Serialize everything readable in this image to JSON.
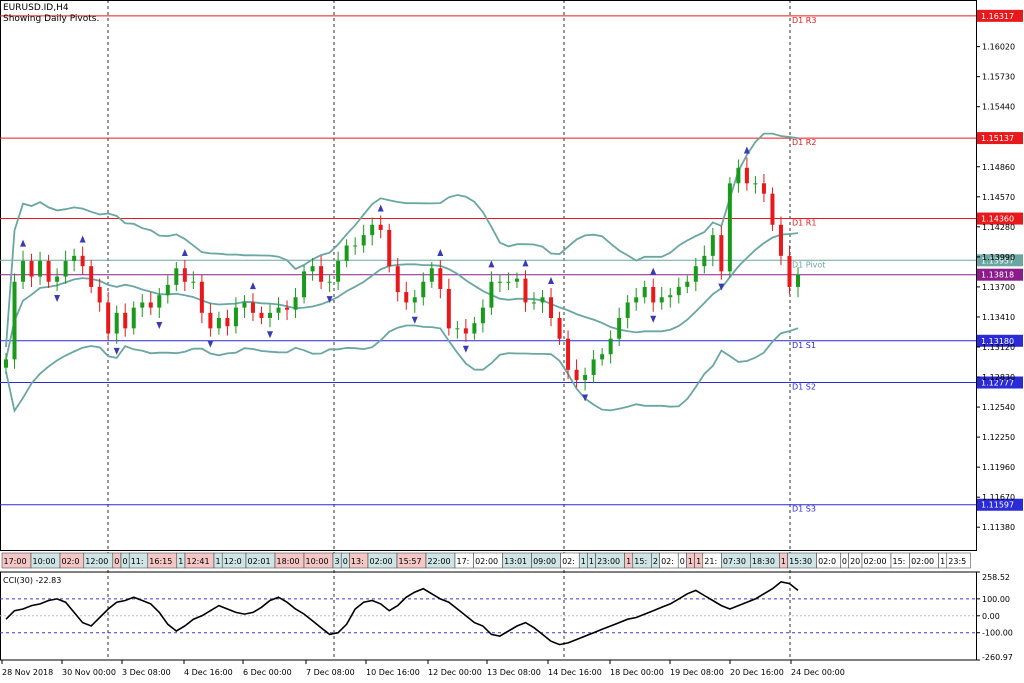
{
  "header": {
    "symbol": "EURUSD.ID,H4",
    "subtitle": "Showing Daily Pivots."
  },
  "chart_data": {
    "type": "candlestick",
    "price_axis_ticks": [
      "1.16020",
      "1.15730",
      "1.15440",
      "1.14860",
      "1.14570",
      "1.14280",
      "1.13990",
      "1.13700",
      "1.13410",
      "1.13120",
      "1.12830",
      "1.12540",
      "1.12250",
      "1.11960",
      "1.11670",
      "1.11380"
    ],
    "ylim": [
      1.1116,
      1.1647
    ],
    "pivots": [
      {
        "name": "D1 R3",
        "value": 1.16317,
        "label": "1.16317",
        "color": "#e8181b"
      },
      {
        "name": "D1 R2",
        "value": 1.15137,
        "label": "1.15137",
        "color": "#e8181b"
      },
      {
        "name": "D1 R1",
        "value": 1.1436,
        "label": "1.14360",
        "color": "#e8181b"
      },
      {
        "name": "D1 Pivot",
        "value": 1.13957,
        "label": "1.13957",
        "color": "#6aa6a2"
      },
      {
        "name": "D1 S1",
        "value": 1.1318,
        "label": "1.13180",
        "color": "#2a2ad6"
      },
      {
        "name": "D1 S2",
        "value": 1.12777,
        "label": "1.12777",
        "color": "#2a2ad6"
      },
      {
        "name": "D1 S3",
        "value": 1.11597,
        "label": "1.11597",
        "color": "#2a2ad6"
      }
    ],
    "current_price": {
      "value": 1.13818,
      "label": "1.13818",
      "color": "#8b1b8b"
    },
    "closes": [
      1.13,
      1.1375,
      1.1395,
      1.138,
      1.1395,
      1.1375,
      1.138,
      1.1395,
      1.14,
      1.139,
      1.137,
      1.1355,
      1.1325,
      1.1345,
      1.133,
      1.135,
      1.1355,
      1.135,
      1.1362,
      1.1372,
      1.1388,
      1.1375,
      1.1375,
      1.1345,
      1.133,
      1.134,
      1.1332,
      1.135,
      1.1355,
      1.1345,
      1.134,
      1.1345,
      1.135,
      1.1348,
      1.136,
      1.1385,
      1.139,
      1.1375,
      1.1375,
      1.1395,
      1.141,
      1.141,
      1.142,
      1.143,
      1.1425,
      1.139,
      1.1365,
      1.1355,
      1.136,
      1.1375,
      1.1388,
      1.1368,
      1.133,
      1.133,
      1.1325,
      1.1335,
      1.135,
      1.1375,
      1.1375,
      1.1375,
      1.1378,
      1.1355,
      1.1355,
      1.136,
      1.134,
      1.132,
      1.129,
      1.128,
      1.1285,
      1.13,
      1.1305,
      1.132,
      1.134,
      1.1355,
      1.136,
      1.137,
      1.1355,
      1.136,
      1.1362,
      1.137,
      1.1375,
      1.139,
      1.14,
      1.142,
      1.1385,
      1.147,
      1.1485,
      1.147,
      1.147,
      1.146,
      1.143,
      1.14,
      1.137,
      1.1382
    ],
    "cci": {
      "label": "CCI(30) -22.83",
      "ticks": [
        "258.52",
        "100.00",
        "0.00",
        "-100.00",
        "-260.97"
      ],
      "ylim": [
        -260.97,
        258.52
      ],
      "values": [
        -20,
        30,
        40,
        60,
        70,
        90,
        100,
        80,
        20,
        -40,
        -60,
        -10,
        40,
        80,
        90,
        110,
        90,
        70,
        20,
        -50,
        -90,
        -60,
        -20,
        0,
        30,
        60,
        40,
        20,
        10,
        20,
        50,
        90,
        110,
        80,
        40,
        10,
        -30,
        -70,
        -110,
        -100,
        -50,
        40,
        80,
        90,
        70,
        30,
        60,
        110,
        140,
        160,
        130,
        100,
        80,
        40,
        0,
        -40,
        -60,
        -110,
        -120,
        -90,
        -60,
        -40,
        -70,
        -110,
        -150,
        -170,
        -160,
        -140,
        -120,
        -100,
        -80,
        -60,
        -40,
        -20,
        -10,
        10,
        30,
        50,
        70,
        100,
        130,
        150,
        120,
        90,
        60,
        40,
        60,
        80,
        100,
        130,
        160,
        200,
        190,
        150
      ]
    }
  },
  "time_axis": {
    "labels": [
      "28 Nov 2018",
      "30 Nov 00:00",
      "3 Dec 08:00",
      "4 Dec 16:00",
      "6 Dec 00:00",
      "7 Dec 08:00",
      "10 Dec 16:00",
      "12 Dec 00:00",
      "13 Dec 08:00",
      "14 Dec 16:00",
      "18 Dec 00:00",
      "19 Dec 08:00",
      "20 Dec 16:00",
      "24 Dec 00:00"
    ]
  },
  "session_strip": {
    "cells": [
      {
        "t": "17:00",
        "c": "#f4c6c6"
      },
      {
        "t": "10:00",
        "c": "#cfe5e5"
      },
      {
        "t": "02:0",
        "c": "#f4c6c6"
      },
      {
        "t": "12:00",
        "c": "#cfe5e5"
      },
      {
        "t": "0",
        "c": "#f4c6c6"
      },
      {
        "t": "0",
        "c": "#cfe5e5"
      },
      {
        "t": "11:",
        "c": "#cfe5e5"
      },
      {
        "t": "16:15",
        "c": "#f4c6c6"
      },
      {
        "t": "1",
        "c": "#cfe5e5"
      },
      {
        "t": "12:41",
        "c": "#f4c6c6"
      },
      {
        "t": "1",
        "c": "#cfe5e5"
      },
      {
        "t": "12:0",
        "c": "#cfe5e5"
      },
      {
        "t": "02:01",
        "c": "#cfe5e5"
      },
      {
        "t": "18:00",
        "c": "#f4c6c6"
      },
      {
        "t": "10:00",
        "c": "#f4c6c6"
      },
      {
        "t": "3",
        "c": "#cfe5e5"
      },
      {
        "t": "0",
        "c": "#cfe5e5"
      },
      {
        "t": "13:",
        "c": "#f4c6c6"
      },
      {
        "t": "02:00",
        "c": "#cfe5e5"
      },
      {
        "t": "15:57",
        "c": "#f4c6c6"
      },
      {
        "t": "22:00",
        "c": "#cfe5e5"
      },
      {
        "t": "17:",
        "c": "#ffffff"
      },
      {
        "t": "02:00",
        "c": "#ffffff"
      },
      {
        "t": "13:01",
        "c": "#cfe5e5"
      },
      {
        "t": "09:00",
        "c": "#cfe5e5"
      },
      {
        "t": "02:",
        "c": "#ffffff"
      },
      {
        "t": "1",
        "c": "#cfe5e5"
      },
      {
        "t": "1",
        "c": "#cfe5e5"
      },
      {
        "t": "23:00",
        "c": "#cfe5e5"
      },
      {
        "t": "1",
        "c": "#f4c6c6"
      },
      {
        "t": "15:",
        "c": "#cfe5e5"
      },
      {
        "t": "2",
        "c": "#cfe5e5"
      },
      {
        "t": "02:",
        "c": "#ffffff"
      },
      {
        "t": "0",
        "c": "#ffffff"
      },
      {
        "t": "1",
        "c": "#f4c6c6"
      },
      {
        "t": "1",
        "c": "#f4c6c6"
      },
      {
        "t": "21:",
        "c": "#ffffff"
      },
      {
        "t": "07:30",
        "c": "#cfe5e5"
      },
      {
        "t": "18:30",
        "c": "#cfe5e5"
      },
      {
        "t": "1",
        "c": "#f4c6c6"
      },
      {
        "t": "15:30",
        "c": "#cfe5e5"
      },
      {
        "t": "02:0",
        "c": "#ffffff"
      },
      {
        "t": "0",
        "c": "#ffffff"
      },
      {
        "t": "20",
        "c": "#ffffff"
      },
      {
        "t": "02:00",
        "c": "#ffffff"
      },
      {
        "t": "15:",
        "c": "#ffffff"
      },
      {
        "t": "02:00",
        "c": "#ffffff"
      },
      {
        "t": "1",
        "c": "#ffffff"
      },
      {
        "t": "23:5",
        "c": "#ffffff"
      },
      {
        "t": "1",
        "c": "#ffffff"
      },
      {
        "t": "20",
        "c": "#ffffff"
      }
    ]
  },
  "colors": {
    "bull": "#1a9a1a",
    "bear": "#e8181b",
    "band": "#6aa6a2",
    "fractal": "#3a3ab8"
  }
}
